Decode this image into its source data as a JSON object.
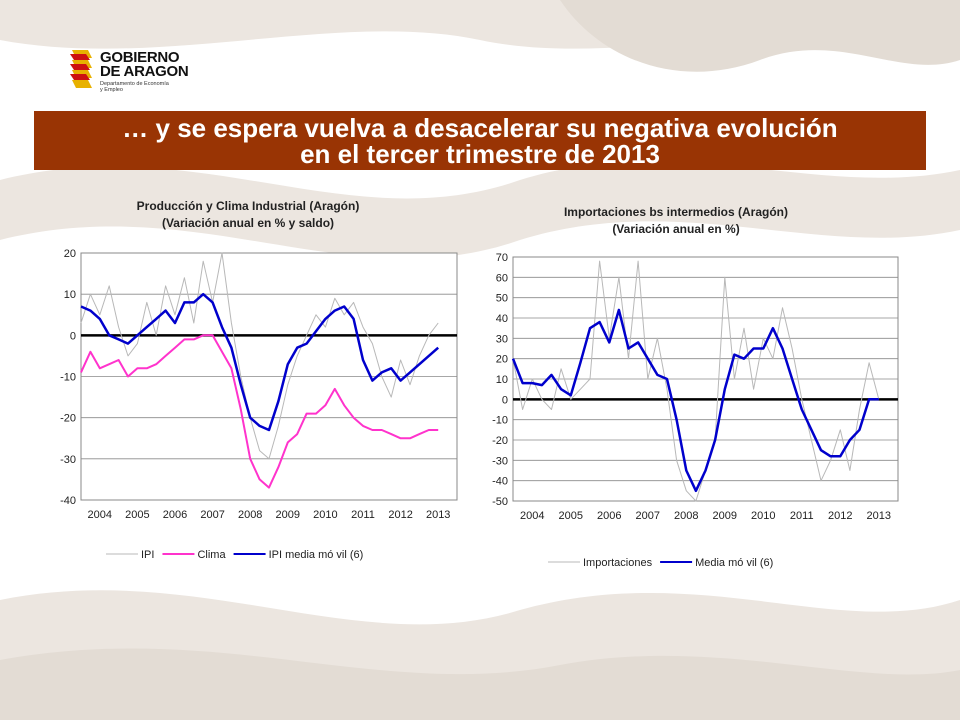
{
  "logo": {
    "line1": "GOBIERNO",
    "line2": "DE ARAGON",
    "sub1": "Departamento de Economía",
    "sub2": "y Empleo"
  },
  "banner": {
    "line1": "… y se espera vuelva a desacelerar su negativa evolución",
    "line2": "en el tercer trimestre de 2013"
  },
  "colors": {
    "banner": "#993404",
    "ipi": "#b8b8b8",
    "clima": "#ff33cc",
    "media": "#0000cc",
    "imp": "#b8b8b8"
  },
  "chart_data": [
    {
      "type": "line",
      "title": "Producción y Clima Industrial (Aragón)",
      "subtitle": "(Variación anual en % y saldo)",
      "xlabel": "",
      "ylabel": "",
      "xlim": [
        2004,
        2014
      ],
      "ylim": [
        -40,
        20
      ],
      "x_ticks": [
        "2004",
        "2005",
        "2006",
        "2007",
        "2008",
        "2009",
        "2010",
        "2011",
        "2012",
        "2013"
      ],
      "y_ticks": [
        "20",
        "10",
        "0",
        "-10",
        "-20",
        "-30",
        "-40"
      ],
      "y_tick_values": [
        20,
        10,
        0,
        -10,
        -20,
        -30,
        -40
      ],
      "grid": true,
      "legend": "bottom",
      "series": [
        {
          "name": "IPI",
          "color": "#b8b8b8",
          "width": 1,
          "x": [
            2004.0,
            2004.25,
            2004.5,
            2004.75,
            2005.0,
            2005.25,
            2005.5,
            2005.75,
            2006.0,
            2006.25,
            2006.5,
            2006.75,
            2007.0,
            2007.25,
            2007.5,
            2007.75,
            2008.0,
            2008.25,
            2008.5,
            2008.75,
            2009.0,
            2009.25,
            2009.5,
            2009.75,
            2010.0,
            2010.25,
            2010.5,
            2010.75,
            2011.0,
            2011.25,
            2011.5,
            2011.75,
            2012.0,
            2012.25,
            2012.5,
            2012.75,
            2013.0,
            2013.25,
            2013.5
          ],
          "y": [
            3,
            10,
            5,
            12,
            2,
            -5,
            -2,
            8,
            0,
            12,
            5,
            14,
            3,
            18,
            8,
            20,
            3,
            -10,
            -20,
            -28,
            -30,
            -22,
            -12,
            -5,
            0,
            5,
            2,
            9,
            5,
            8,
            2,
            -2,
            -10,
            -15,
            -6,
            -12,
            -5,
            0,
            3
          ]
        },
        {
          "name": "Clima",
          "color": "#ff33cc",
          "width": 2,
          "x": [
            2004.0,
            2004.25,
            2004.5,
            2004.75,
            2005.0,
            2005.25,
            2005.5,
            2005.75,
            2006.0,
            2006.25,
            2006.5,
            2006.75,
            2007.0,
            2007.25,
            2007.5,
            2007.75,
            2008.0,
            2008.25,
            2008.5,
            2008.75,
            2009.0,
            2009.25,
            2009.5,
            2009.75,
            2010.0,
            2010.25,
            2010.5,
            2010.75,
            2011.0,
            2011.25,
            2011.5,
            2011.75,
            2012.0,
            2012.25,
            2012.5,
            2012.75,
            2013.0,
            2013.25,
            2013.5
          ],
          "y": [
            -9,
            -4,
            -8,
            -7,
            -6,
            -10,
            -8,
            -8,
            -7,
            -5,
            -3,
            -1,
            -1,
            0,
            0,
            -4,
            -8,
            -18,
            -30,
            -35,
            -37,
            -32,
            -26,
            -24,
            -19,
            -19,
            -17,
            -13,
            -17,
            -20,
            -22,
            -23,
            -23,
            -24,
            -25,
            -25,
            -24,
            -23,
            -23
          ]
        },
        {
          "name": "IPI media mó vil (6)",
          "color": "#0000cc",
          "width": 2.5,
          "x": [
            2004.0,
            2004.25,
            2004.5,
            2004.75,
            2005.0,
            2005.25,
            2005.5,
            2005.75,
            2006.0,
            2006.25,
            2006.5,
            2006.75,
            2007.0,
            2007.25,
            2007.5,
            2007.75,
            2008.0,
            2008.25,
            2008.5,
            2008.75,
            2009.0,
            2009.25,
            2009.5,
            2009.75,
            2010.0,
            2010.25,
            2010.5,
            2010.75,
            2011.0,
            2011.25,
            2011.5,
            2011.75,
            2012.0,
            2012.25,
            2012.5,
            2012.75,
            2013.0,
            2013.25,
            2013.5
          ],
          "y": [
            7,
            6,
            4,
            0,
            -1,
            -2,
            0,
            2,
            4,
            6,
            3,
            8,
            8,
            10,
            8,
            2,
            -3,
            -12,
            -20,
            -22,
            -23,
            -16,
            -7,
            -3,
            -2,
            1,
            4,
            6,
            7,
            4,
            -6,
            -11,
            -9,
            -8,
            -11,
            -9,
            -7,
            -5,
            -3
          ]
        }
      ]
    },
    {
      "type": "line",
      "title": "Importaciones bs intermedios (Aragón)",
      "subtitle": "(Variación anual en %)",
      "xlabel": "",
      "ylabel": "",
      "xlim": [
        2004,
        2014
      ],
      "ylim": [
        -50,
        70
      ],
      "x_ticks": [
        "2004",
        "2005",
        "2006",
        "2007",
        "2008",
        "2009",
        "2010",
        "2011",
        "2012",
        "2013"
      ],
      "y_ticks": [
        "70",
        "60",
        "50",
        "40",
        "30",
        "20",
        "10",
        "0",
        "-10",
        "-20",
        "-30",
        "-40",
        "-50"
      ],
      "y_tick_values": [
        70,
        60,
        50,
        40,
        30,
        20,
        10,
        0,
        -10,
        -20,
        -30,
        -40,
        -50
      ],
      "grid": true,
      "legend": "bottom",
      "series": [
        {
          "name": "Importaciones",
          "color": "#b8b8b8",
          "width": 1,
          "x": [
            2004.0,
            2004.25,
            2004.5,
            2004.75,
            2005.0,
            2005.25,
            2005.5,
            2005.75,
            2006.0,
            2006.25,
            2006.5,
            2006.75,
            2007.0,
            2007.25,
            2007.5,
            2007.75,
            2008.0,
            2008.25,
            2008.5,
            2008.75,
            2009.0,
            2009.25,
            2009.5,
            2009.75,
            2010.0,
            2010.25,
            2010.5,
            2010.75,
            2011.0,
            2011.25,
            2011.5,
            2011.75,
            2012.0,
            2012.25,
            2012.5,
            2012.75,
            2013.0,
            2013.25,
            2013.5
          ],
          "y": [
            20,
            -5,
            10,
            0,
            -5,
            15,
            0,
            5,
            10,
            68,
            30,
            60,
            20,
            68,
            10,
            30,
            5,
            -30,
            -45,
            -50,
            -35,
            -20,
            60,
            10,
            35,
            5,
            30,
            20,
            45,
            25,
            0,
            -20,
            -40,
            -30,
            -15,
            -35,
            -5,
            18,
            0
          ]
        },
        {
          "name": "Media mó vil (6)",
          "color": "#0000cc",
          "width": 2.5,
          "x": [
            2004.0,
            2004.25,
            2004.5,
            2004.75,
            2005.0,
            2005.25,
            2005.5,
            2005.75,
            2006.0,
            2006.25,
            2006.5,
            2006.75,
            2007.0,
            2007.25,
            2007.5,
            2007.75,
            2008.0,
            2008.25,
            2008.5,
            2008.75,
            2009.0,
            2009.25,
            2009.5,
            2009.75,
            2010.0,
            2010.25,
            2010.5,
            2010.75,
            2011.0,
            2011.25,
            2011.5,
            2011.75,
            2012.0,
            2012.25,
            2012.5,
            2012.75,
            2013.0,
            2013.25,
            2013.5
          ],
          "y": [
            20,
            8,
            8,
            7,
            12,
            5,
            2,
            18,
            35,
            38,
            28,
            44,
            25,
            28,
            20,
            12,
            10,
            -10,
            -35,
            -45,
            -35,
            -20,
            5,
            22,
            20,
            25,
            25,
            35,
            25,
            10,
            -5,
            -15,
            -25,
            -28,
            -28,
            -20,
            -15,
            0,
            0
          ]
        }
      ]
    }
  ]
}
